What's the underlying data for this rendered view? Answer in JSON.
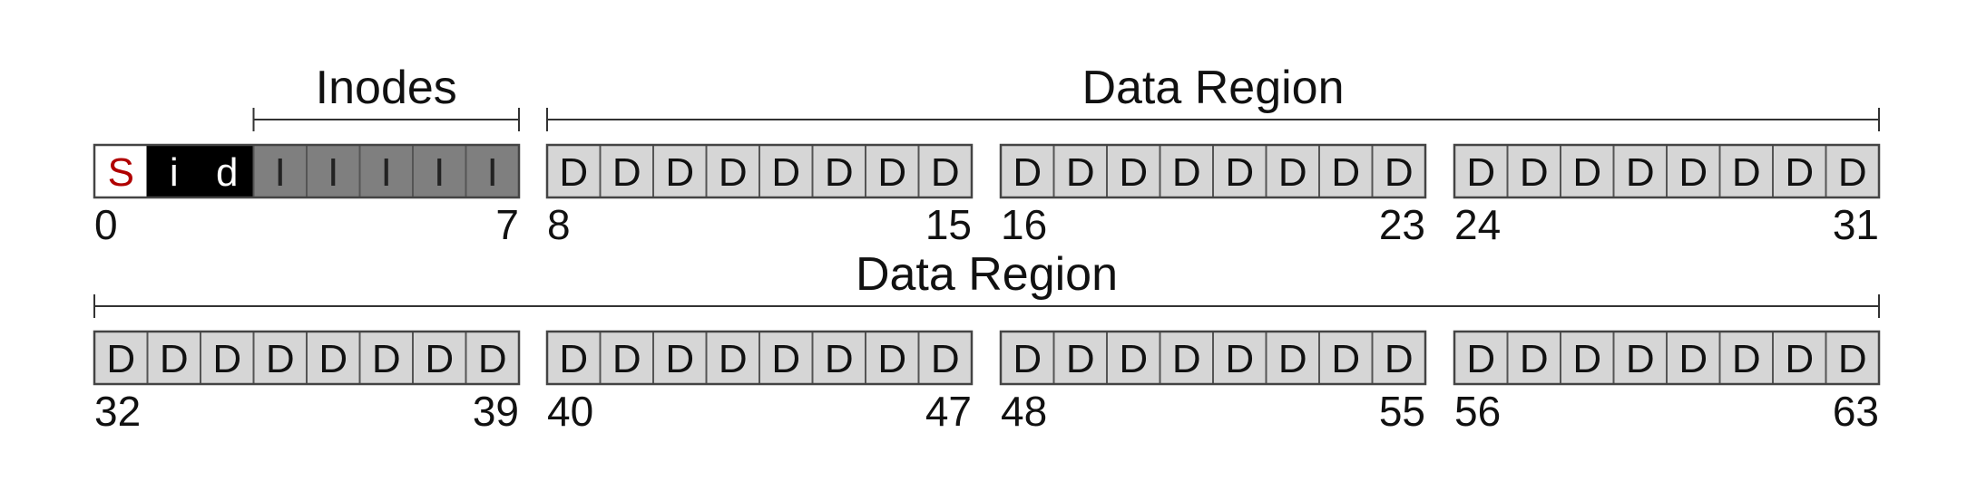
{
  "colors": {
    "superblock_fill": "#ffffff",
    "superblock_text": "#b00000",
    "bitmap_fill": "#000000",
    "bitmap_text": "#ffffff",
    "inode_fill": "#7f7f7f",
    "data_fill": "#d6d6d6",
    "stroke": "#555555",
    "text": "#111111"
  },
  "rows": [
    {
      "groups": [
        {
          "blocks": [
            {
              "letter": "S",
              "kind": "superblock"
            },
            {
              "letter": "i",
              "kind": "bitmap"
            },
            {
              "letter": "d",
              "kind": "bitmap"
            },
            {
              "letter": "I",
              "kind": "inode"
            },
            {
              "letter": "I",
              "kind": "inode"
            },
            {
              "letter": "I",
              "kind": "inode"
            },
            {
              "letter": "I",
              "kind": "inode"
            },
            {
              "letter": "I",
              "kind": "inode"
            }
          ],
          "start_label": "0",
          "end_label": "7"
        },
        {
          "blocks": "DDDDDDDD",
          "start_label": "8",
          "end_label": "15"
        },
        {
          "blocks": "DDDDDDDD",
          "start_label": "16",
          "end_label": "23"
        },
        {
          "blocks": "DDDDDDDD",
          "start_label": "24",
          "end_label": "31"
        }
      ],
      "spans": [
        {
          "label": "Inodes",
          "from_group": 0,
          "from_block": 3,
          "to_group": 0,
          "to_block": 7
        },
        {
          "label": "Data Region",
          "from_group": 1,
          "from_block": 0,
          "to_group": 3,
          "to_block": 7
        }
      ]
    },
    {
      "groups": [
        {
          "blocks": "DDDDDDDD",
          "start_label": "32",
          "end_label": "39"
        },
        {
          "blocks": "DDDDDDDD",
          "start_label": "40",
          "end_label": "47"
        },
        {
          "blocks": "DDDDDDDD",
          "start_label": "48",
          "end_label": "55"
        },
        {
          "blocks": "DDDDDDDD",
          "start_label": "56",
          "end_label": "63"
        }
      ],
      "spans": [
        {
          "label": "Data Region",
          "from_group": 0,
          "from_block": 0,
          "to_group": 3,
          "to_block": 7
        }
      ]
    }
  ]
}
